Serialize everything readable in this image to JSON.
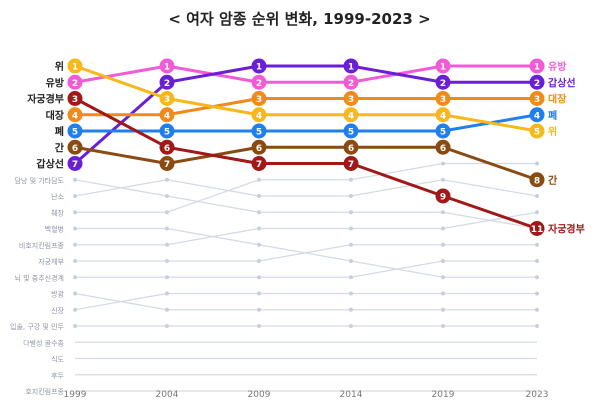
{
  "chart_data": {
    "type": "line",
    "title": "< 여자 암종 순위 변화, 1999-2023 >",
    "x": [
      "1999",
      "2004",
      "2009",
      "2014",
      "2019",
      "2023"
    ],
    "ymax": 17,
    "series": [
      {
        "name": "유방",
        "color": "#f15bd6",
        "ranks": [
          2,
          1,
          2,
          2,
          1,
          1
        ],
        "left_label": "유방",
        "right_label": "유방",
        "highlight": true
      },
      {
        "name": "갑상선",
        "color": "#6a1fd6",
        "ranks": [
          7,
          2,
          1,
          1,
          2,
          2
        ],
        "left_label": "갑상선",
        "right_label": "갑상선",
        "highlight": true
      },
      {
        "name": "대장",
        "color": "#f08a1a",
        "ranks": [
          4,
          4,
          3,
          3,
          3,
          3
        ],
        "left_label": "대장",
        "right_label": "대장",
        "highlight": true
      },
      {
        "name": "폐",
        "color": "#1f7fef",
        "ranks": [
          5,
          5,
          5,
          5,
          5,
          4
        ],
        "left_label": "폐",
        "right_label": "폐",
        "highlight": true
      },
      {
        "name": "위",
        "color": "#f7b81a",
        "ranks": [
          1,
          3,
          4,
          4,
          4,
          5
        ],
        "left_label": "위",
        "right_label": "위",
        "highlight": true
      },
      {
        "name": "간",
        "color": "#8a4b12",
        "ranks": [
          6,
          7,
          6,
          6,
          6,
          8
        ],
        "left_label": "간",
        "right_label": "간",
        "highlight": true
      },
      {
        "name": "자궁경부",
        "color": "#a01818",
        "ranks": [
          3,
          6,
          7,
          7,
          9,
          11
        ],
        "left_label": "자궁경부",
        "right_label": "자궁경부",
        "highlight": true
      },
      {
        "name": "담낭 및 기타담도",
        "color": "#d3dbe6",
        "ranks": [
          8,
          9,
          10,
          10,
          10,
          11
        ],
        "left_label": "담낭 및 기타담도"
      },
      {
        "name": "난소",
        "color": "#d3dbe6",
        "ranks": [
          9,
          8,
          9,
          9,
          8,
          9
        ],
        "left_label": "난소"
      },
      {
        "name": "췌장",
        "color": "#d3dbe6",
        "ranks": [
          10,
          10,
          8,
          8,
          7,
          7
        ],
        "left_label": "췌장"
      },
      {
        "name": "백혈병",
        "color": "#d3dbe6",
        "ranks": [
          11,
          11,
          12,
          13,
          14,
          14
        ],
        "left_label": "백혈병"
      },
      {
        "name": "비호지킨림프종",
        "color": "#d3dbe6",
        "ranks": [
          12,
          12,
          11,
          11,
          11,
          10
        ],
        "left_label": "비호지킨림프종"
      },
      {
        "name": "자궁체부",
        "color": "#d3dbe6",
        "ranks": [
          13,
          13,
          13,
          12,
          12,
          12
        ],
        "left_label": "자궁체부"
      },
      {
        "name": "뇌 및 중추신경계",
        "color": "#d3dbe6",
        "ranks": [
          14,
          14,
          14,
          14,
          13,
          13
        ],
        "left_label": "뇌 및 중추신경계"
      },
      {
        "name": "방광",
        "color": "#d3dbe6",
        "ranks": [
          15,
          16,
          16,
          16,
          16,
          16
        ],
        "left_label": "방광"
      },
      {
        "name": "신장",
        "color": "#d3dbe6",
        "ranks": [
          16,
          15,
          15,
          15,
          15,
          15
        ],
        "left_label": "신장"
      },
      {
        "name": "입술, 구강 및 인두",
        "color": "#d3dbe6",
        "ranks": [
          17,
          17,
          17,
          17,
          17,
          17
        ],
        "left_label": "입술, 구강 및 인두"
      },
      {
        "name": "다발성 골수종",
        "color": "#d3dbe6",
        "ranks": [
          18,
          18,
          18,
          18,
          18,
          18
        ],
        "left_label": "다발성 골수종"
      },
      {
        "name": "식도",
        "color": "#d3dbe6",
        "ranks": [
          19,
          19,
          19,
          19,
          19,
          19
        ],
        "left_label": "식도"
      },
      {
        "name": "후두",
        "color": "#d3dbe6",
        "ranks": [
          20,
          20,
          20,
          20,
          20,
          20
        ],
        "left_label": "후두"
      },
      {
        "name": "호지킨림프종",
        "color": "#d3dbe6",
        "ranks": [
          21,
          21,
          21,
          21,
          21,
          21
        ],
        "left_label": "호지킨림프종"
      }
    ]
  }
}
